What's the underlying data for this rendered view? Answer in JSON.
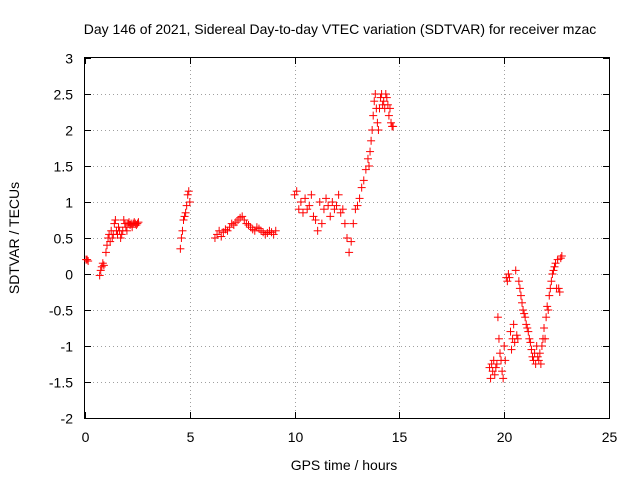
{
  "chart_data": {
    "type": "scatter",
    "title": "Day 146 of 2021, Sidereal Day-to-day VTEC variation (SDTVAR) for receiver mzac",
    "xlabel": "GPS time / hours",
    "ylabel": "SDTVAR / TECUs",
    "xlim": [
      0,
      25
    ],
    "ylim": [
      -2,
      3
    ],
    "xticks": [
      0,
      5,
      10,
      15,
      20,
      25
    ],
    "xtick_labels": [
      "0",
      "5",
      "10",
      "15",
      "20",
      "25"
    ],
    "yticks": [
      -2,
      -1.5,
      -1,
      -0.5,
      0,
      0.5,
      1,
      1.5,
      2,
      2.5,
      3
    ],
    "ytick_labels": [
      "-2",
      "-1.5",
      "-1",
      "-0.5",
      "0",
      "0.5",
      "1",
      "1.5",
      "2",
      "2.5",
      "3"
    ],
    "grid": true,
    "marker": "+",
    "color": "#ff0000",
    "series": [
      {
        "name": "SDTVAR",
        "x": [
          0.05,
          0.1,
          0.15,
          0.7,
          0.75,
          0.8,
          0.85,
          0.9,
          1.0,
          1.05,
          1.1,
          1.15,
          1.2,
          1.25,
          1.3,
          1.35,
          1.4,
          1.45,
          1.5,
          1.55,
          1.6,
          1.65,
          1.7,
          1.75,
          1.8,
          1.85,
          1.9,
          1.95,
          2.0,
          2.05,
          2.1,
          2.15,
          2.2,
          2.25,
          2.3,
          2.35,
          2.4,
          2.45,
          2.5,
          2.55,
          4.55,
          4.6,
          4.65,
          4.7,
          4.75,
          4.8,
          4.85,
          4.9,
          4.95,
          5.0,
          6.2,
          6.3,
          6.4,
          6.5,
          6.6,
          6.7,
          6.8,
          6.9,
          7.0,
          7.1,
          7.2,
          7.3,
          7.4,
          7.5,
          7.6,
          7.7,
          7.8,
          7.9,
          8.0,
          8.1,
          8.2,
          8.3,
          8.4,
          8.5,
          8.6,
          8.7,
          8.8,
          8.9,
          9.0,
          9.1,
          10.0,
          10.1,
          10.2,
          10.3,
          10.4,
          10.5,
          10.6,
          10.7,
          10.8,
          10.9,
          11.0,
          11.1,
          11.2,
          11.3,
          11.4,
          11.5,
          11.6,
          11.7,
          11.8,
          11.9,
          12.0,
          12.1,
          12.2,
          12.3,
          12.4,
          12.5,
          12.6,
          12.7,
          12.8,
          12.9,
          13.0,
          13.1,
          13.2,
          13.3,
          13.4,
          13.5,
          13.55,
          13.6,
          13.65,
          13.7,
          13.75,
          13.8,
          13.85,
          13.9,
          13.95,
          14.0,
          14.05,
          14.1,
          14.15,
          14.2,
          14.25,
          14.3,
          14.35,
          14.4,
          14.45,
          14.5,
          14.55,
          14.6,
          14.65,
          14.7,
          19.3,
          19.35,
          19.4,
          19.45,
          19.5,
          19.55,
          19.6,
          19.65,
          19.7,
          19.75,
          19.8,
          19.85,
          19.9,
          19.95,
          20.0,
          20.05,
          20.1,
          20.15,
          20.2,
          20.25,
          20.3,
          20.35,
          20.4,
          20.45,
          20.5,
          20.55,
          20.6,
          20.65,
          20.7,
          20.75,
          20.8,
          20.85,
          20.9,
          20.95,
          21.0,
          21.05,
          21.1,
          21.15,
          21.2,
          21.25,
          21.3,
          21.35,
          21.4,
          21.45,
          21.5,
          21.55,
          21.6,
          21.65,
          21.7,
          21.75,
          21.8,
          21.85,
          21.9,
          21.95,
          22.0,
          22.05,
          22.1,
          22.15,
          22.2,
          22.25,
          22.3,
          22.35,
          22.4,
          22.45,
          22.5,
          22.55,
          22.6,
          22.65,
          22.7,
          22.75
        ],
        "y": [
          0.2,
          0.2,
          0.18,
          -0.02,
          0.05,
          0.1,
          0.15,
          0.12,
          0.3,
          0.4,
          0.5,
          0.55,
          0.45,
          0.6,
          0.5,
          0.55,
          0.7,
          0.75,
          0.6,
          0.55,
          0.65,
          0.6,
          0.5,
          0.55,
          0.6,
          0.75,
          0.7,
          0.65,
          0.6,
          0.7,
          0.72,
          0.68,
          0.7,
          0.65,
          0.7,
          0.72,
          0.7,
          0.68,
          0.7,
          0.72,
          0.35,
          0.5,
          0.6,
          0.75,
          0.8,
          0.85,
          0.95,
          1.1,
          1.15,
          1.0,
          0.5,
          0.55,
          0.6,
          0.52,
          0.58,
          0.62,
          0.6,
          0.65,
          0.7,
          0.68,
          0.72,
          0.75,
          0.78,
          0.8,
          0.75,
          0.7,
          0.68,
          0.65,
          0.62,
          0.6,
          0.65,
          0.63,
          0.6,
          0.58,
          0.55,
          0.57,
          0.6,
          0.58,
          0.55,
          0.6,
          1.1,
          1.15,
          0.9,
          1.0,
          0.85,
          1.05,
          0.9,
          0.95,
          1.1,
          0.8,
          0.75,
          0.6,
          1.0,
          0.7,
          0.9,
          1.05,
          0.95,
          0.8,
          1.0,
          0.9,
          0.95,
          1.1,
          0.85,
          0.9,
          0.7,
          0.5,
          0.3,
          0.45,
          0.7,
          0.9,
          0.95,
          1.05,
          1.2,
          1.3,
          1.45,
          1.6,
          1.5,
          1.7,
          1.85,
          2.0,
          2.2,
          2.4,
          2.5,
          2.3,
          2.1,
          2.0,
          2.3,
          2.45,
          2.5,
          2.35,
          2.4,
          2.3,
          2.5,
          2.45,
          2.35,
          2.2,
          2.3,
          2.1,
          2.05,
          2.05,
          -1.3,
          -1.45,
          -1.25,
          -1.35,
          -1.2,
          -1.4,
          -1.3,
          -1.25,
          -0.6,
          -0.9,
          -1.1,
          -1.2,
          -1.35,
          -1.45,
          -1.0,
          -1.2,
          -0.05,
          -0.1,
          0.0,
          -0.05,
          -0.8,
          -1.05,
          -0.9,
          -0.7,
          -0.95,
          0.05,
          -0.85,
          -0.9,
          -0.1,
          -0.2,
          -0.3,
          -0.4,
          -0.5,
          -0.55,
          -0.6,
          -0.7,
          -0.75,
          -0.8,
          -0.9,
          -0.95,
          -1.05,
          -1.15,
          -1.2,
          -1.1,
          -1.25,
          -1.0,
          -1.15,
          -1.2,
          -1.1,
          -1.25,
          -1.0,
          -0.9,
          -0.75,
          -0.9,
          -0.6,
          -0.45,
          -0.5,
          -0.3,
          -0.2,
          -0.1,
          0.0,
          0.05,
          0.1,
          0.15,
          -0.2,
          0.2,
          -0.2,
          -0.25,
          0.22,
          0.25
        ]
      }
    ]
  }
}
